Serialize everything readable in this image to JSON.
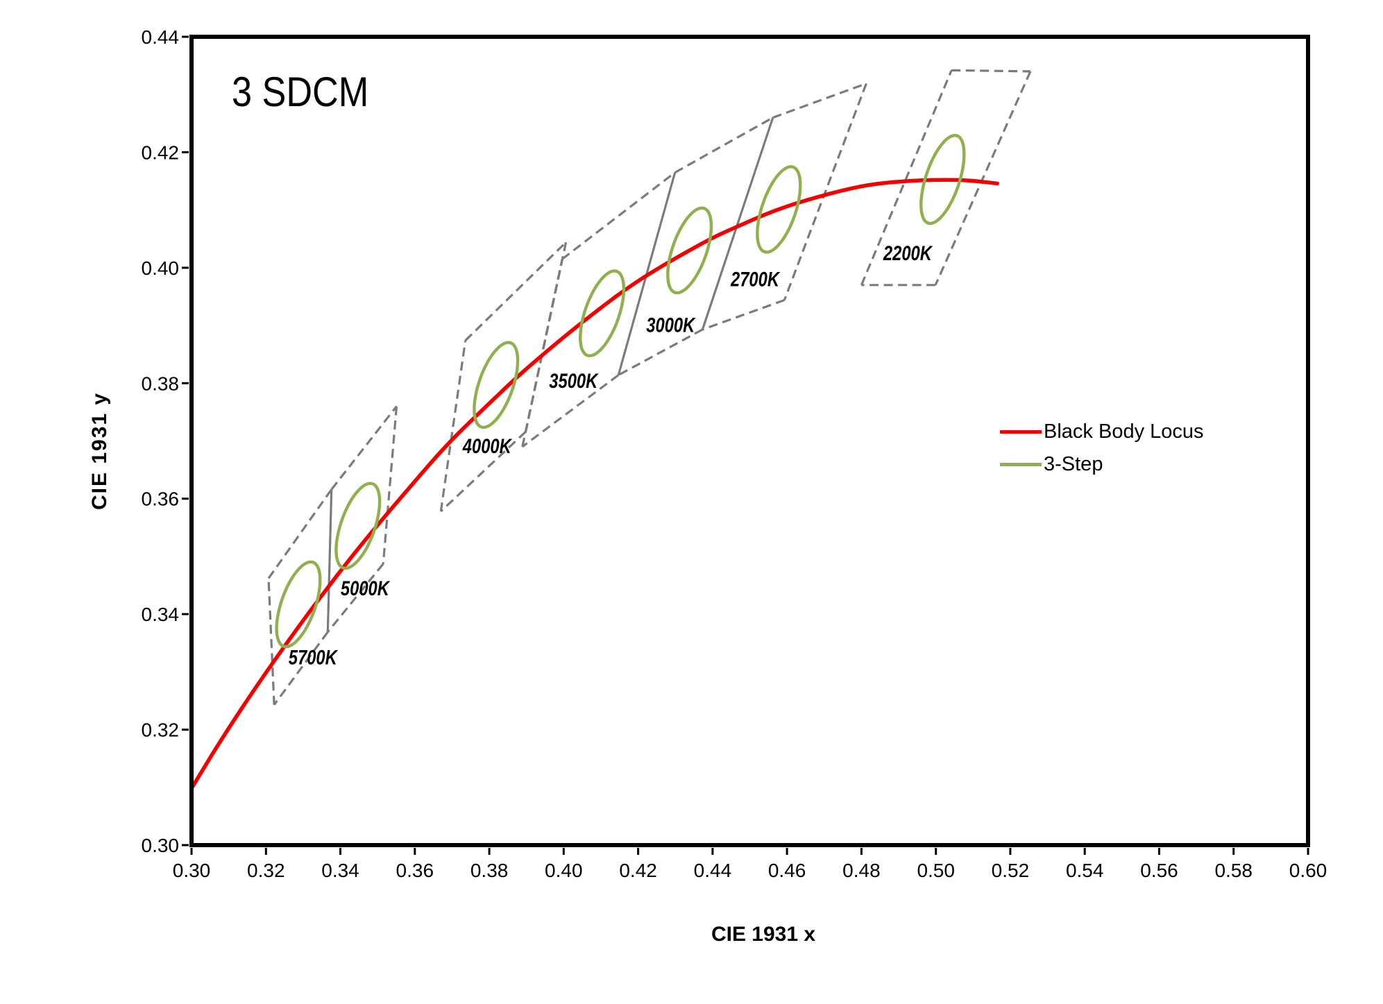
{
  "title": "3 SDCM",
  "axes": {
    "x": {
      "title": "CIE 1931 x",
      "tick_labels": [
        "0.30",
        "0.32",
        "0.34",
        "0.36",
        "0.38",
        "0.40",
        "0.42",
        "0.44",
        "0.46",
        "0.48",
        "0.50",
        "0.52",
        "0.54",
        "0.56",
        "0.58",
        "0.60"
      ]
    },
    "y": {
      "title": "CIE 1931 y",
      "tick_labels": [
        "0.30",
        "0.32",
        "0.34",
        "0.36",
        "0.38",
        "0.40",
        "0.42",
        "0.44"
      ]
    }
  },
  "legend": {
    "items": [
      {
        "label": "Black Body Locus",
        "color": "#F40000",
        "swatch_height": 5
      },
      {
        "label": "3-Step",
        "color": "#8FB04C",
        "swatch_height": 5
      }
    ]
  },
  "colors": {
    "black_body_locus": "#F40000",
    "ellipse_green": "#8FB04C",
    "bin_outline_gray": "#7B7B7B",
    "axis_black": "#000000",
    "background": "#FFFFFF"
  },
  "chart_data": {
    "type": "line",
    "title": "3 SDCM",
    "xlabel": "CIE 1931 x",
    "ylabel": "CIE 1931 y",
    "xlim": [
      0.3,
      0.6
    ],
    "ylim": [
      0.3,
      0.44
    ],
    "x_tick_step": 0.02,
    "y_tick_step": 0.02,
    "grid": false,
    "legend_position": "right-middle",
    "series": [
      {
        "name": "Black Body Locus",
        "type": "line",
        "color": "#F40000",
        "points": [
          [
            0.3,
            0.3098
          ],
          [
            0.3064,
            0.3166
          ],
          [
            0.3135,
            0.3237
          ],
          [
            0.3221,
            0.3318
          ],
          [
            0.3324,
            0.341
          ],
          [
            0.3451,
            0.3516
          ],
          [
            0.3608,
            0.3636
          ],
          [
            0.37,
            0.3702
          ],
          [
            0.3805,
            0.3768
          ],
          [
            0.39,
            0.3825
          ],
          [
            0.4053,
            0.3907
          ],
          [
            0.42,
            0.3977
          ],
          [
            0.4369,
            0.4041
          ],
          [
            0.4476,
            0.4074
          ],
          [
            0.4599,
            0.4106
          ],
          [
            0.477,
            0.4137
          ],
          [
            0.49,
            0.4149
          ],
          [
            0.5056,
            0.4152
          ],
          [
            0.5165,
            0.4146
          ]
        ]
      }
    ],
    "ansi_bins": [
      {
        "label": "5700K",
        "vertices": [
          [
            0.3207,
            0.3462
          ],
          [
            0.3376,
            0.3616
          ],
          [
            0.3366,
            0.3369
          ],
          [
            0.3222,
            0.3243
          ]
        ],
        "solid_edges": [
          1
        ],
        "label_pos": [
          0.3326,
          0.3326
        ]
      },
      {
        "label": "5000K",
        "vertices": [
          [
            0.3376,
            0.3616
          ],
          [
            0.3551,
            0.376
          ],
          [
            0.3515,
            0.3487
          ],
          [
            0.3366,
            0.3369
          ]
        ],
        "solid_edges": [
          3
        ],
        "label_pos": [
          0.3466,
          0.3446
        ]
      },
      {
        "label": "4000K",
        "vertices": [
          [
            0.3736,
            0.3874
          ],
          [
            0.4006,
            0.4044
          ],
          [
            0.3898,
            0.3716
          ],
          [
            0.367,
            0.3578
          ]
        ],
        "solid_edges": [],
        "label_pos": [
          0.3794,
          0.3692
        ]
      },
      {
        "label": "3500K",
        "vertices": [
          [
            0.3996,
            0.4015
          ],
          [
            0.4299,
            0.4165
          ],
          [
            0.4147,
            0.3814
          ],
          [
            0.3889,
            0.369
          ]
        ],
        "solid_edges": [
          1
        ],
        "label_pos": [
          0.4026,
          0.3805
        ]
      },
      {
        "label": "3000K",
        "vertices": [
          [
            0.4299,
            0.4165
          ],
          [
            0.4562,
            0.426
          ],
          [
            0.4373,
            0.3893
          ],
          [
            0.4147,
            0.3814
          ]
        ],
        "solid_edges": [
          1,
          3
        ],
        "label_pos": [
          0.4287,
          0.3902
        ]
      },
      {
        "label": "2700K",
        "vertices": [
          [
            0.4562,
            0.426
          ],
          [
            0.4813,
            0.4319
          ],
          [
            0.4593,
            0.3944
          ],
          [
            0.4373,
            0.3893
          ]
        ],
        "solid_edges": [
          3
        ],
        "label_pos": [
          0.4514,
          0.3981
        ]
      },
      {
        "label": "2200K",
        "vertices": [
          [
            0.5042,
            0.4342
          ],
          [
            0.5254,
            0.434
          ],
          [
            0.4999,
            0.397
          ],
          [
            0.48,
            0.397
          ]
        ],
        "solid_edges": [],
        "label_pos": [
          0.4924,
          0.4026
        ]
      }
    ],
    "macadam_ellipses": [
      {
        "name": "5700K",
        "center": [
          0.3287,
          0.3417
        ],
        "a": 0.0084,
        "b": 0.0042,
        "angle_deg": 56
      },
      {
        "name": "5000K",
        "center": [
          0.3447,
          0.3553
        ],
        "a": 0.0084,
        "b": 0.0042,
        "angle_deg": 56
      },
      {
        "name": "4000K",
        "center": [
          0.3818,
          0.3797
        ],
        "a": 0.0084,
        "b": 0.0042,
        "angle_deg": 56
      },
      {
        "name": "3500K",
        "center": [
          0.4103,
          0.3921
        ],
        "a": 0.0084,
        "b": 0.0042,
        "angle_deg": 56
      },
      {
        "name": "3000K",
        "center": [
          0.4338,
          0.403
        ],
        "a": 0.0084,
        "b": 0.0042,
        "angle_deg": 56
      },
      {
        "name": "2700K",
        "center": [
          0.4578,
          0.4101
        ],
        "a": 0.0084,
        "b": 0.0042,
        "angle_deg": 57
      },
      {
        "name": "2200K",
        "center": [
          0.5018,
          0.4153
        ],
        "a": 0.0086,
        "b": 0.0042,
        "angle_deg": 58
      }
    ]
  }
}
